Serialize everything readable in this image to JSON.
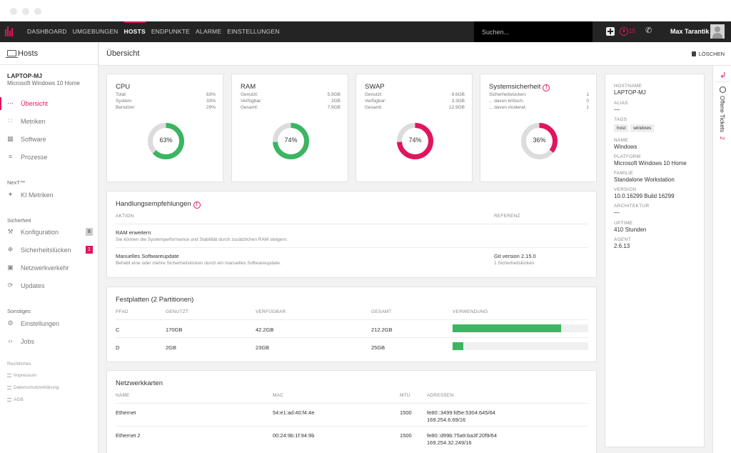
{
  "nav": {
    "links": [
      "DASHBOARD",
      "UMGEBUNGEN",
      "HOSTS",
      "ENDPUNKTE",
      "ALARME",
      "EINSTELLUNGEN"
    ],
    "active": "HOSTS",
    "search_placeholder": "Suchen...",
    "alarm_count": "15",
    "user_name": "Max Tarantik"
  },
  "sidebar": {
    "title": "Hosts",
    "host_name": "LAPTOP-MJ",
    "host_os": "Microsoft Windows 10 Home",
    "items": [
      {
        "label": "Übersicht",
        "icon": "dots-icon",
        "active": true
      },
      {
        "label": "Metriken",
        "icon": "metrics-icon"
      },
      {
        "label": "Software",
        "icon": "grid-icon"
      },
      {
        "label": "Prozesse",
        "icon": "list-icon"
      }
    ],
    "section_next": "NexT™",
    "next_items": [
      {
        "label": "KI Metriken",
        "icon": "ai-icon"
      }
    ],
    "section_security": "Sicherheit",
    "security_items": [
      {
        "label": "Konfiguration",
        "icon": "wrench-icon",
        "badge": "8",
        "badge_color": "#cccccc"
      },
      {
        "label": "Sicherheitslücken",
        "icon": "bug-icon",
        "badge": "1",
        "badge_color": "#e0155e"
      },
      {
        "label": "Netzwerkverkehr",
        "icon": "network-icon"
      },
      {
        "label": "Updates",
        "icon": "refresh-icon"
      }
    ],
    "section_other": "Sonstiges",
    "other_items": [
      {
        "label": "Einstellungen",
        "icon": "gear-icon"
      },
      {
        "label": "Jobs",
        "icon": "code-icon"
      }
    ],
    "section_legal": "Rechtliches",
    "legal_items": [
      "Impressum",
      "Datenschutzerklärung",
      "AGB"
    ]
  },
  "main": {
    "title": "Übersicht",
    "delete_label": "LÖSCHEN"
  },
  "cpu": {
    "title": "CPU",
    "rows": [
      [
        "Total:",
        "63%"
      ],
      [
        "System:",
        "33%"
      ],
      [
        "Benutzer:",
        "29%"
      ]
    ],
    "percent": 63,
    "label": "63%",
    "color": "#3bb563"
  },
  "ram": {
    "title": "RAM",
    "rows": [
      [
        "Genutzt:",
        "5.9GB"
      ],
      [
        "Verfügbar:",
        "2GB"
      ],
      [
        "Gesamt:",
        "7.9GB"
      ]
    ],
    "percent": 74,
    "label": "74%",
    "color": "#3bb563"
  },
  "swap": {
    "title": "SWAP",
    "rows": [
      [
        "Genutzt:",
        "9.6GB"
      ],
      [
        "Verfügbar:",
        "3.3GB"
      ],
      [
        "Gesamt:",
        "12.9GB"
      ]
    ],
    "percent": 74,
    "label": "74%",
    "color": "#e0155e"
  },
  "security": {
    "title": "Systemsicherheit",
    "rows": [
      [
        "Sicherheitslücken:",
        "1"
      ],
      [
        "... davon kritisch:",
        "0"
      ],
      [
        "... davon moderat:",
        "1"
      ]
    ],
    "percent": 36,
    "label": "36%",
    "color": "#e0155e"
  },
  "recommendations": {
    "title": "Handlungsempfehlungen",
    "col_action": "AKTION",
    "col_ref": "REFERENZ",
    "rows": [
      {
        "title": "RAM erweitern",
        "desc": "Sie können die Systemperformance und Stabilität durch zusätzlichen RAM steigern.",
        "ref": "",
        "ref_sub": ""
      },
      {
        "title": "Manuelles Softwareupdate",
        "desc": "Behebt eine oder mehre Sicherheitslücken durch ein manuelles Softwareupdate.",
        "ref": "Git version 2.15.0",
        "ref_sub": "1 Sicherheitslücken"
      }
    ]
  },
  "disks": {
    "title": "Festplatten (2 Partitionen)",
    "headers": [
      "PFAD",
      "GENUTZT",
      "VERFÜGBAR",
      "GESAMT",
      "VERWENDUNG"
    ],
    "rows": [
      {
        "path": "C",
        "used": "170GB",
        "free": "42.2GB",
        "total": "212.2GB",
        "usage": 0.8
      },
      {
        "path": "D",
        "used": "2GB",
        "free": "23GB",
        "total": "25GB",
        "usage": 0.08
      }
    ]
  },
  "network": {
    "title": "Netzwerkkarten",
    "headers": [
      "NAME",
      "MAC",
      "MTU",
      "ADRESSEN"
    ],
    "rows": [
      {
        "name": "Ethernet",
        "mac": "54:e1:ad:40:f4:4e",
        "mtu": "1500",
        "addr1": "fe80::3499:fd5e:5304:645/64",
        "addr2": "169.254.6.69/16"
      },
      {
        "name": "Ethernet 2",
        "mac": "00:24:9b:1f:94:9b",
        "mtu": "1500",
        "addr1": "fe80::d99b:75a9:ba3f:20f9/64",
        "addr2": "169.254.32.249/16"
      }
    ]
  },
  "info": {
    "hostname_label": "HOSTNAME",
    "hostname": "LAPTOP-MJ",
    "alias_label": "ALIAS",
    "alias": "—",
    "tags_label": "TAGS",
    "tags": [
      "host",
      "windows"
    ],
    "name_label": "NAME",
    "name": "Windows",
    "platform_label": "PLATFORM",
    "platform": "Microsoft Windows 10 Home",
    "family_label": "FAMILIE",
    "family": "Standalone Workstation",
    "version_label": "VERSION",
    "version": "10.0.16299 Build 16299",
    "arch_label": "ARCHITEKTUR",
    "arch": "—",
    "uptime_label": "UPTIME",
    "uptime": "410 Stunden",
    "agent_label": "AGENT",
    "agent": "2.6.13"
  },
  "rail": {
    "label": "Offene Tickets",
    "count": "2"
  }
}
